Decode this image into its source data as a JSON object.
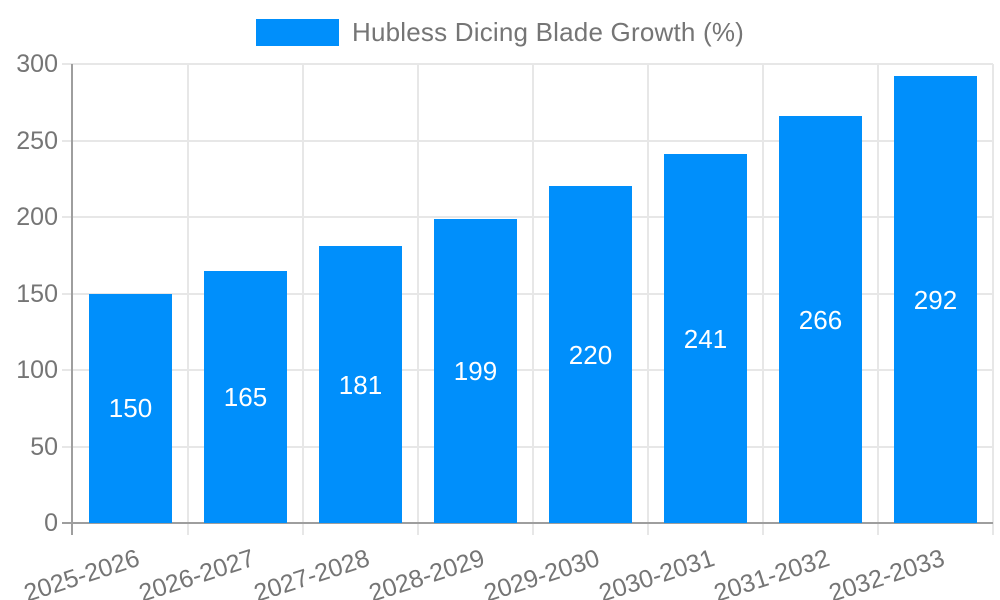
{
  "chart_data": {
    "type": "bar",
    "title": "Hubless Dicing Blade Growth (%)",
    "categories": [
      "2025-2026",
      "2026-2027",
      "2027-2028",
      "2028-2029",
      "2029-2030",
      "2030-2031",
      "2031-2032",
      "2032-2033"
    ],
    "values": [
      150,
      165,
      181,
      199,
      220,
      241,
      266,
      292
    ],
    "xlabel": "",
    "ylabel": "",
    "ylim": [
      0,
      300
    ],
    "yticks": [
      0,
      50,
      100,
      150,
      200,
      250,
      300
    ],
    "grid": true,
    "legend_position": "top",
    "colors": {
      "bar": "#008FFB",
      "grid": "#e7e7e7",
      "axis": "#9e9e9e",
      "tick_label": "#757575",
      "value_label": "#ffffff",
      "background": "#ffffff"
    }
  }
}
